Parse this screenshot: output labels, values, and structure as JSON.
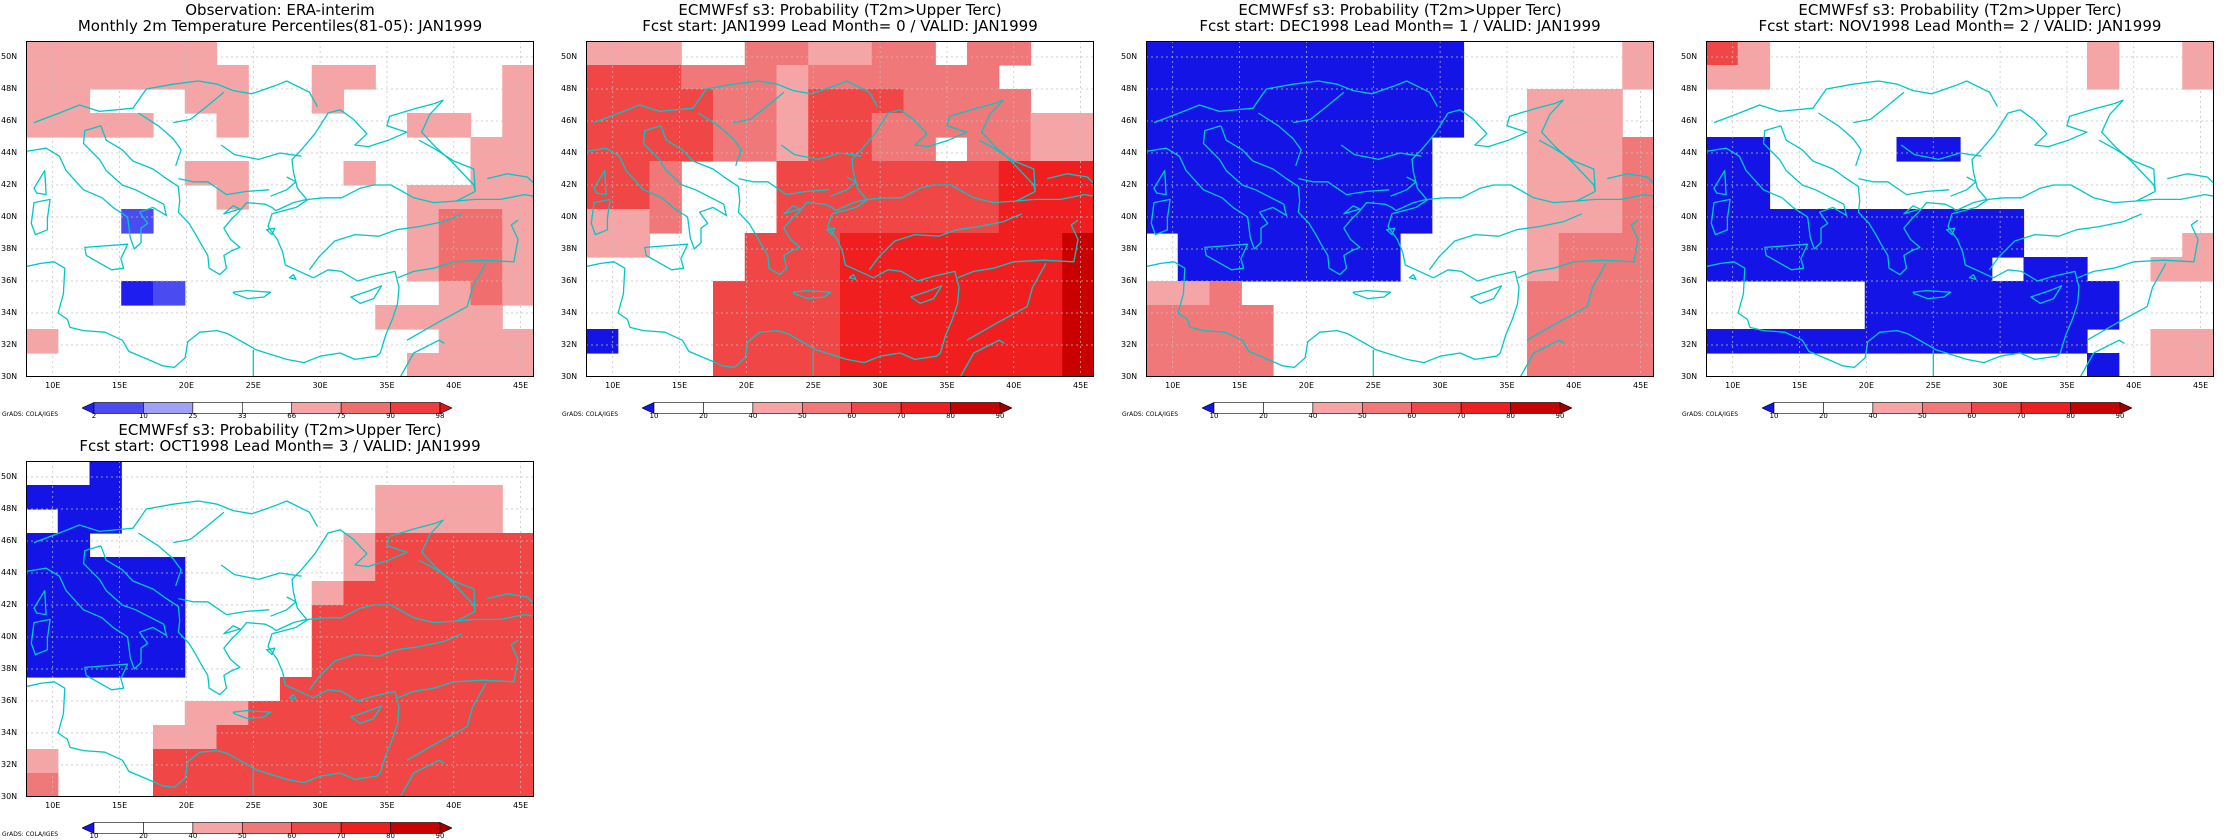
{
  "grads_credit": "GrADS: COLA/IGES",
  "colors": {
    "coast": "#00c8c8",
    "grid": "#c0c0c0",
    "obs_levels": [
      "#1e1ef0",
      "#4b4bf2",
      "#a0a0f5",
      "#ffffff",
      "#ffffff",
      "#f5a5a5",
      "#f06e6e",
      "#f03c3c",
      "#dc1414"
    ],
    "prob_levels": [
      "#1414e6",
      "#ffffff",
      "#ffffff",
      "#f5a5a5",
      "#f07878",
      "#f04646",
      "#f01e1e",
      "#c80000",
      "#a00000"
    ]
  },
  "axes": {
    "x_ticks": [
      "10E",
      "15E",
      "20E",
      "25E",
      "30E",
      "35E",
      "40E",
      "45E"
    ],
    "y_ticks": [
      "50N",
      "48N",
      "46N",
      "44N",
      "42N",
      "40N",
      "38N",
      "36N",
      "34N",
      "32N",
      "30N"
    ]
  },
  "panels": [
    {
      "title1": "Observation: ERA-interim",
      "title2": "Monthly 2m Temperature Percentiles(81-05): JAN1999",
      "colorbar_type": "obs",
      "colorbar_labels": [
        "2",
        "10",
        "25",
        "33",
        "66",
        "75",
        "90",
        "98"
      ],
      "grid": [
        "6666660005555555",
        "6666666006655556",
        "6600066006005556",
        "6666006000006656",
        "5500000005055566",
        "0000566005655566",
        "0000056055556666",
        "0002000555556776",
        "0000000555556776",
        "5050000555556776",
        "5001200005555676",
        "5050000000566665",
        "6050000005555666",
        "0000000005556666"
      ]
    },
    {
      "title1": "ECMWFsf s3: Probability (T2m>Upper Terc)",
      "title2": "Fcst start: JAN1999  Lead Month= 0 / VALID: JAN1999",
      "colorbar_type": "prob",
      "colorbar_labels": [
        "10",
        "20",
        "40",
        "50",
        "60",
        "70",
        "80",
        "90"
      ],
      "grid": [
        "4440055445505500",
        "6665554555555000",
        "6666554666555500",
        "6666554665555544",
        "6666554665505544",
        "6650006666666777",
        "6650006666666777",
        "4450006666666777",
        "4400066677777778",
        "0000066677777778",
        "0000666677777778",
        "0000666677777778",
        "1000666677777778",
        "0000666677777778"
      ]
    },
    {
      "title1": "ECMWFsf s3: Probability (T2m>Upper Terc)",
      "title2": "Fcst start: DEC1998  Lead Month= 1 / VALID: JAN1999",
      "colorbar_type": "prob",
      "colorbar_labels": [
        "10",
        "20",
        "40",
        "50",
        "60",
        "70",
        "80",
        "90"
      ],
      "grid": [
        "1111111111000004",
        "1111111111000004",
        "1111111111004440",
        "1111111111004440",
        "1111111110004445",
        "1111111110004445",
        "1111111110004445",
        "1111111110004445",
        "0111111100004555",
        "0111111100004555",
        "4450000000005555",
        "5555000000005555",
        "5555000000005555",
        "5555000000005555"
      ]
    },
    {
      "title1": "ECMWFsf s3: Probability (T2m>Upper Terc)",
      "title2": "Fcst start: NOV1998  Lead Month= 2 / VALID: JAN1999",
      "colorbar_type": "prob",
      "colorbar_labels": [
        "10",
        "20",
        "40",
        "50",
        "60",
        "70",
        "80",
        "90"
      ],
      "grid": [
        "6400000000004004",
        "4400000000004004",
        "0000000000000000",
        "0000000000000000",
        "1100001100000000",
        "1100000000000000",
        "1100000000000000",
        "1111111111000000",
        "1111111111000004",
        "1111111110110044",
        "0000011111111000",
        "0000011111111000",
        "1111111111110044",
        "0000000000001044"
      ]
    },
    {
      "title1": "ECMWFsf s3: Probability (T2m>Upper Terc)",
      "title2": "Fcst start: OCT1998  Lead Month= 3 / VALID: JAN1999",
      "colorbar_type": "prob",
      "colorbar_labels": [
        "10",
        "20",
        "40",
        "50",
        "60",
        "70",
        "80",
        "90"
      ],
      "grid": [
        "0010000000000000",
        "1110000000044440",
        "0110000000044440",
        "1100000000466666",
        "1111100000466666",
        "1111100004666666",
        "1111100006666666",
        "1111100006666666",
        "1111100006666666",
        "0000000066666666",
        "0000044666666666",
        "0000446666666666",
        "4000666666666666",
        "5000666666666666"
      ]
    }
  ]
}
